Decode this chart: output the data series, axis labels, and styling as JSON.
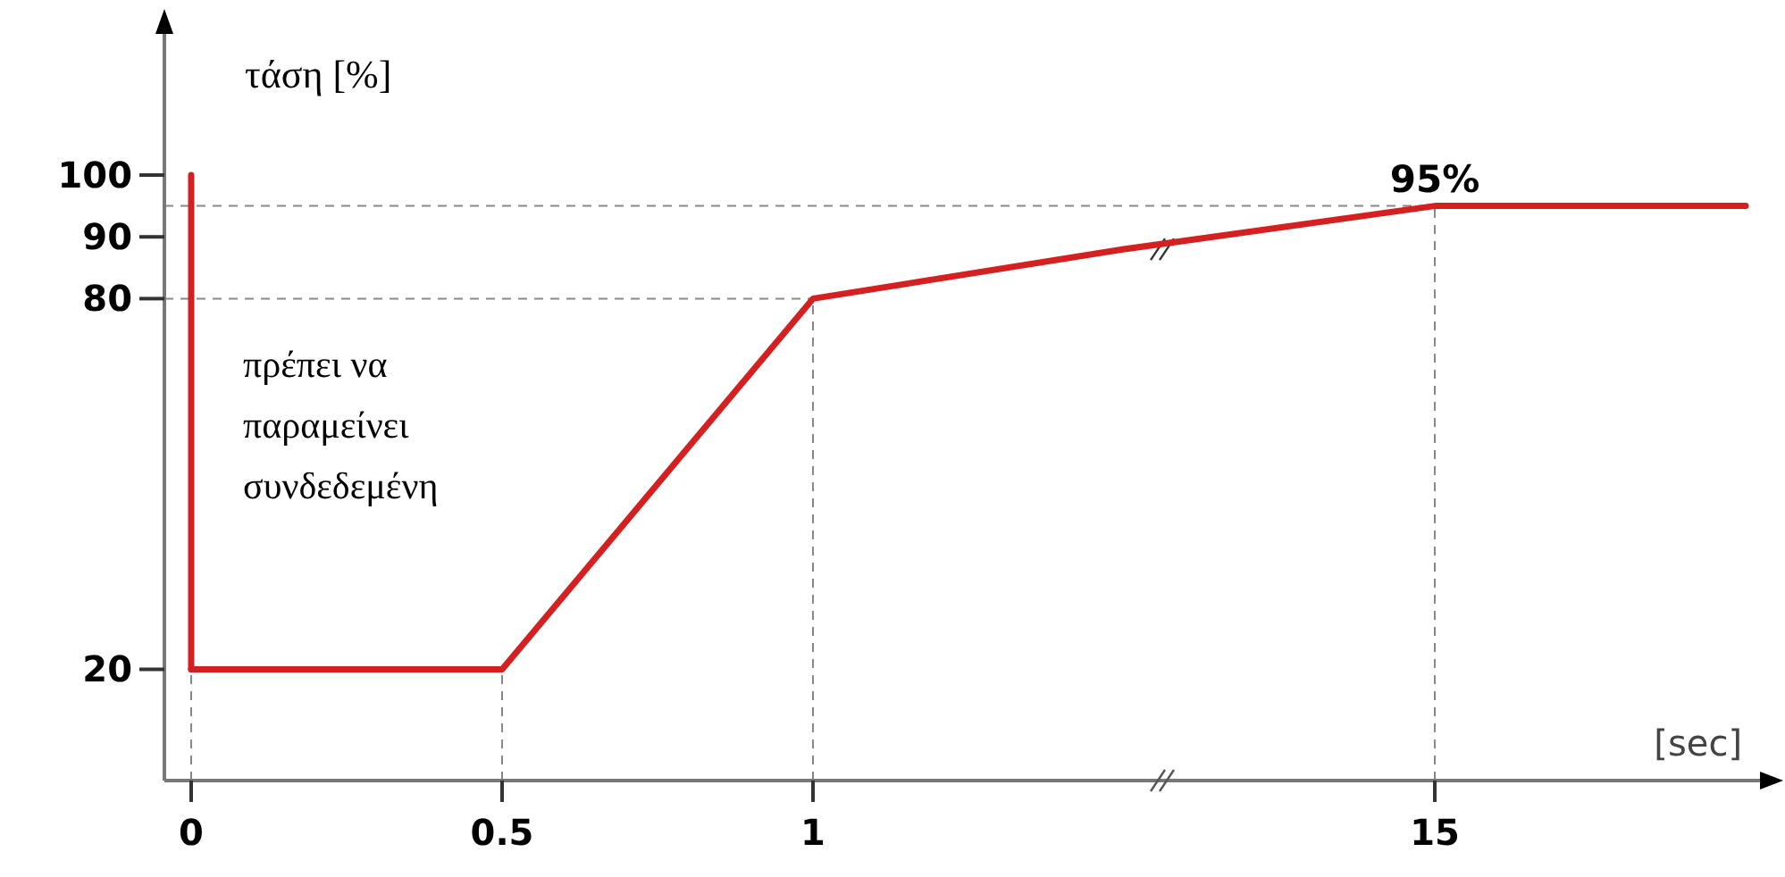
{
  "chart_data": {
    "type": "line",
    "ylabel": "τάση [%]",
    "xlabel": "[sec]",
    "categories": [
      "0",
      "0.5",
      "1",
      null,
      "15",
      null
    ],
    "series": [
      {
        "color": "#d42020",
        "values": [
          20,
          20,
          80,
          88,
          95,
          95
        ]
      },
      {
        "color": "#d42020",
        "x": [
          "0",
          "0"
        ],
        "values": [
          100,
          20
        ]
      }
    ],
    "ylim": [
      2,
      124
    ],
    "yticks": [
      20,
      80,
      90,
      100
    ],
    "ref_lines": [
      {
        "axis": "x",
        "value": "0",
        "line_style": "dashed",
        "color": "#888888"
      },
      {
        "axis": "x",
        "value": "0.5",
        "line_style": "dashed",
        "color": "#888888"
      },
      {
        "axis": "x",
        "value": "1",
        "line_style": "dashed",
        "color": "#888888"
      },
      {
        "axis": "x",
        "value": "15",
        "line_style": "dashed",
        "color": "#888888"
      },
      {
        "axis": "y",
        "value": 80,
        "line_style": "dashed",
        "color": "#888888"
      },
      {
        "axis": "y",
        "value": 95,
        "line_style": "dashed",
        "color": "#888888"
      }
    ],
    "annotations": [
      {
        "text": "95%",
        "x": "15",
        "y": 95
      },
      "πρέπει να\nπαραμείνει\nσυνδεδεμένη"
    ],
    "line_style": "solid"
  }
}
